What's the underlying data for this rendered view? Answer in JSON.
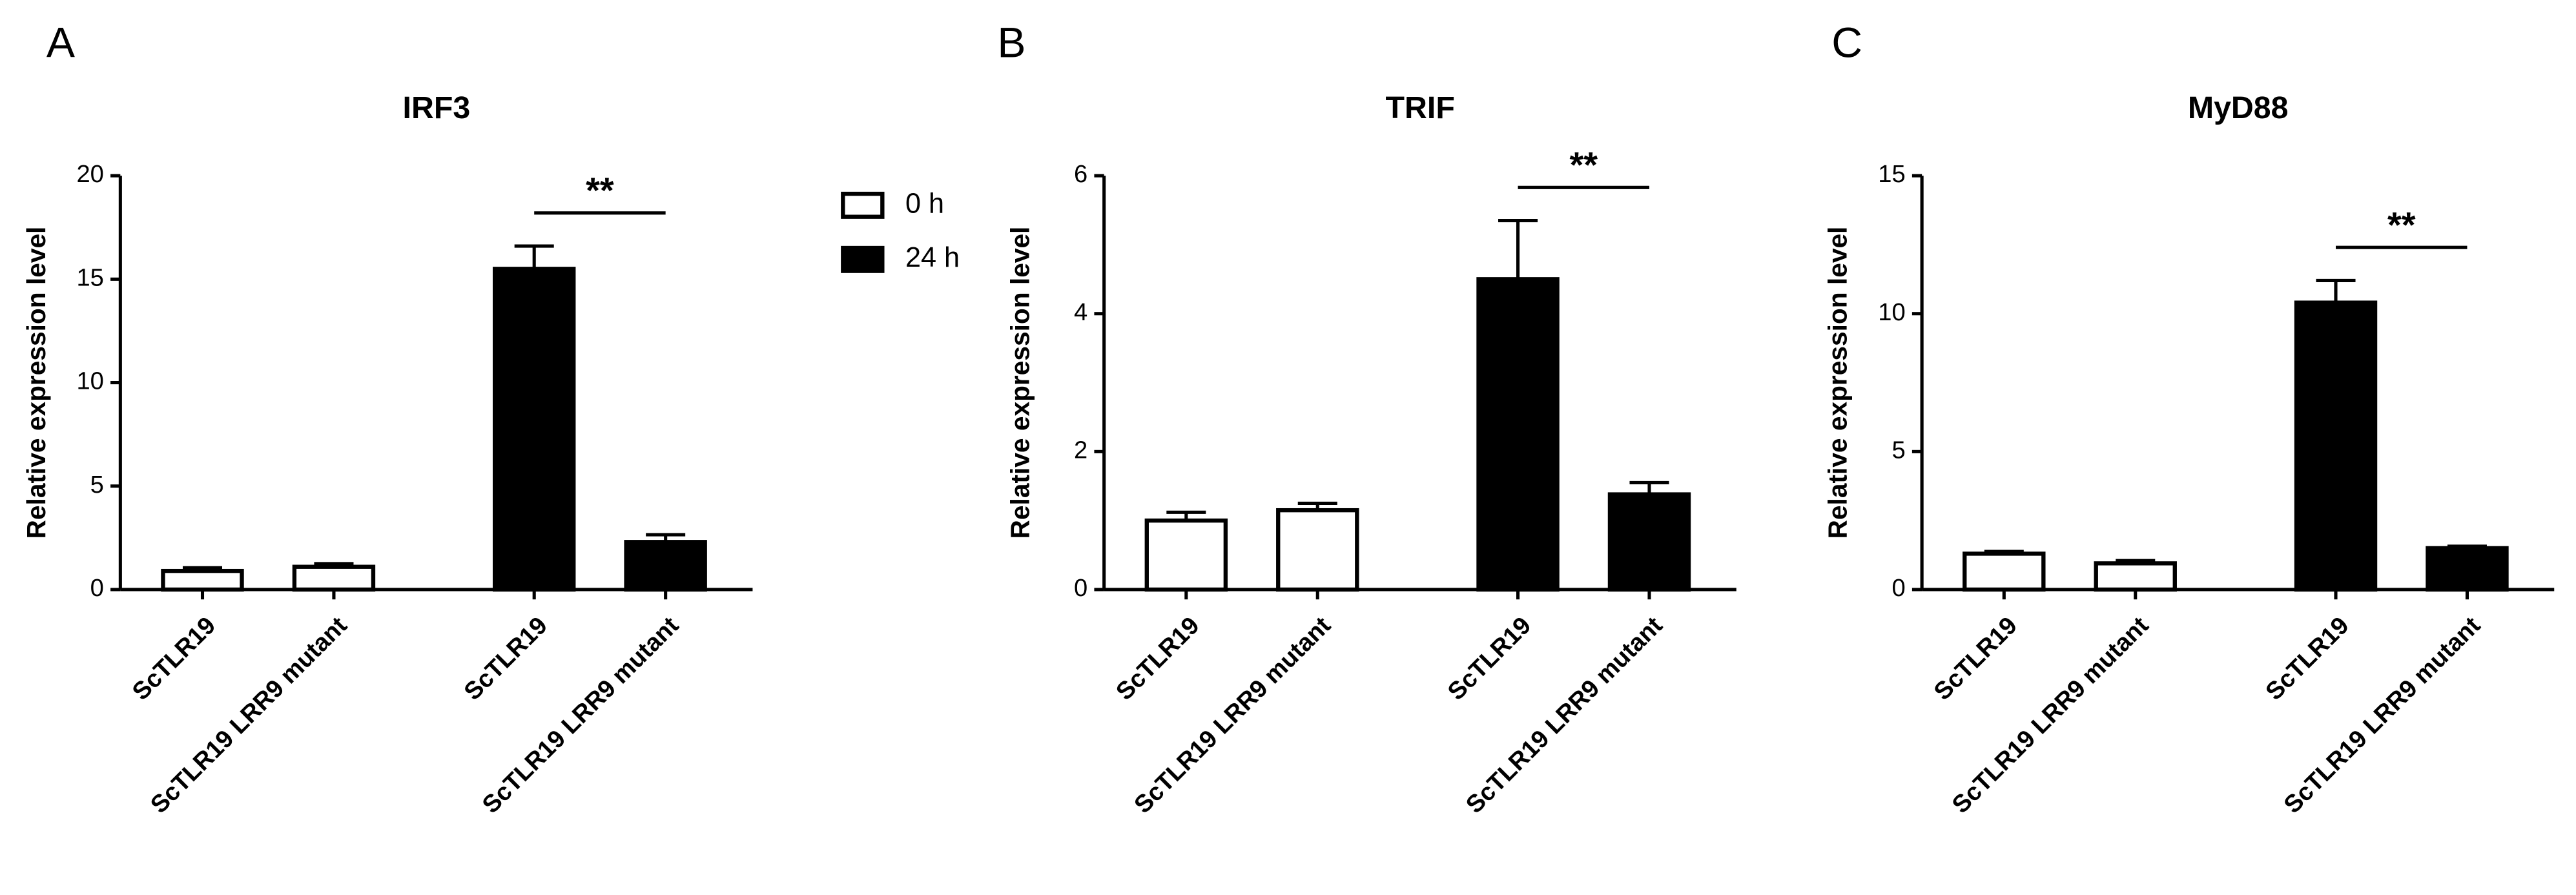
{
  "chart_data": [
    {
      "type": "bar",
      "panel": "A",
      "title": "IRF3",
      "y_label": "Relative  expression level",
      "categories": [
        "ScTLR19",
        "ScTLR19 LRR9 mutant",
        "ScTLR19",
        "ScTLR19 LRR9 mutant"
      ],
      "series": [
        {
          "name": "0 h",
          "color": "#ffffff",
          "values": [
            0.9,
            1.1,
            null,
            null
          ],
          "errors": [
            0.15,
            0.15,
            null,
            null
          ]
        },
        {
          "name": "24 h",
          "color": "#000000",
          "values": [
            null,
            null,
            15.5,
            2.3
          ],
          "errors": [
            null,
            null,
            1.1,
            0.35
          ]
        }
      ],
      "ylim": [
        0,
        20
      ],
      "yticks": [
        0,
        5,
        10,
        15,
        20
      ],
      "annotation": {
        "text": "**",
        "from": 2,
        "to": 3
      }
    },
    {
      "type": "bar",
      "panel": "B",
      "title": "TRIF",
      "y_label": "Relative  expression level",
      "categories": [
        "ScTLR19",
        "ScTLR19 LRR9 mutant",
        "ScTLR19",
        "ScTLR19 LRR9 mutant"
      ],
      "series": [
        {
          "color": "#ffffff",
          "values": [
            1.0,
            1.15,
            null,
            null
          ],
          "errors": [
            0.12,
            0.1,
            null,
            null
          ]
        },
        {
          "color": "#000000",
          "values": [
            null,
            null,
            4.5,
            1.38
          ],
          "errors": [
            null,
            null,
            0.85,
            0.17
          ]
        }
      ],
      "ylim": [
        0,
        6
      ],
      "yticks": [
        0,
        2,
        4,
        6
      ],
      "annotation": {
        "text": "**",
        "from": 2,
        "to": 3
      }
    },
    {
      "type": "bar",
      "panel": "C",
      "title": "MyD88",
      "y_label": "Relative  expression level",
      "categories": [
        "ScTLR19",
        "ScTLR19 LRR9 mutant",
        "ScTLR19",
        "ScTLR19 LRR9 mutant"
      ],
      "series": [
        {
          "color": "#ffffff",
          "values": [
            1.3,
            0.95,
            null,
            null
          ],
          "errors": [
            0.08,
            0.1,
            null,
            null
          ]
        },
        {
          "color": "#000000",
          "values": [
            null,
            null,
            10.4,
            1.5
          ],
          "errors": [
            null,
            null,
            0.8,
            0.07
          ]
        }
      ],
      "ylim": [
        0,
        15
      ],
      "yticks": [
        0,
        5,
        10,
        15
      ],
      "annotation": {
        "text": "**",
        "from": 2,
        "to": 3
      }
    }
  ]
}
